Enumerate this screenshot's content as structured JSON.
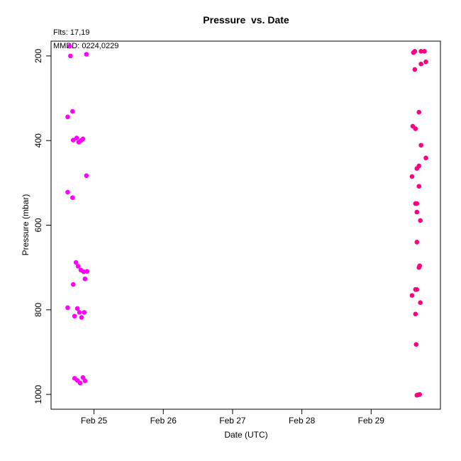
{
  "chart_data": {
    "type": "scatter",
    "title": "Pressure  vs. Date",
    "xlabel": "Date (UTC)",
    "ylabel": "Pressure (mbar)",
    "annotations": [
      "Flts: 17,19",
      "MMDD: 0224,0229"
    ],
    "x_unit": "date (Feb, UTC)",
    "xlim": [
      24.38,
      30.0
    ],
    "ylim": [
      1035,
      165
    ],
    "y_reversed": true,
    "x_ticks": [
      {
        "value": 25,
        "label": "Feb 25"
      },
      {
        "value": 26,
        "label": "Feb 26"
      },
      {
        "value": 27,
        "label": "Feb 27"
      },
      {
        "value": 28,
        "label": "Feb 28"
      },
      {
        "value": 29,
        "label": "Feb 29"
      }
    ],
    "y_ticks": [
      200,
      400,
      600,
      800,
      1000
    ],
    "grid": false,
    "legend": "none",
    "series": [
      {
        "color": "#ff00ff",
        "points": [
          [
            24.65,
            177
          ],
          [
            24.66,
            200
          ],
          [
            24.89,
            196
          ],
          [
            24.62,
            344
          ],
          [
            24.69,
            331
          ],
          [
            24.7,
            399
          ],
          [
            24.75,
            394
          ],
          [
            24.78,
            404
          ],
          [
            24.81,
            400
          ],
          [
            24.84,
            396
          ],
          [
            24.89,
            483
          ],
          [
            24.62,
            522
          ],
          [
            24.69,
            535
          ],
          [
            24.74,
            688
          ],
          [
            24.77,
            697
          ],
          [
            24.81,
            706
          ],
          [
            24.85,
            710
          ],
          [
            24.9,
            709
          ],
          [
            24.87,
            727
          ],
          [
            24.7,
            740
          ],
          [
            24.62,
            795
          ],
          [
            24.76,
            797
          ],
          [
            24.79,
            806
          ],
          [
            24.86,
            806
          ],
          [
            24.72,
            815
          ],
          [
            24.82,
            818
          ],
          [
            24.72,
            962
          ],
          [
            24.76,
            967
          ],
          [
            24.8,
            973
          ],
          [
            24.84,
            960
          ],
          [
            24.87,
            968
          ]
        ]
      },
      {
        "color": "#ff0080",
        "points": [
          [
            29.61,
            192
          ],
          [
            29.63,
            189
          ],
          [
            29.72,
            189
          ],
          [
            29.77,
            189
          ],
          [
            29.79,
            214
          ],
          [
            29.72,
            219
          ],
          [
            29.63,
            232
          ],
          [
            29.69,
            333
          ],
          [
            29.6,
            366
          ],
          [
            29.64,
            372
          ],
          [
            29.72,
            411
          ],
          [
            29.79,
            441
          ],
          [
            29.69,
            460
          ],
          [
            29.66,
            466
          ],
          [
            29.59,
            485
          ],
          [
            29.69,
            508
          ],
          [
            29.64,
            549
          ],
          [
            29.66,
            549
          ],
          [
            29.66,
            569
          ],
          [
            29.71,
            589
          ],
          [
            29.66,
            640
          ],
          [
            29.7,
            696
          ],
          [
            29.69,
            700
          ],
          [
            29.66,
            752
          ],
          [
            29.64,
            752
          ],
          [
            29.59,
            766
          ],
          [
            29.71,
            783
          ],
          [
            29.64,
            810
          ],
          [
            29.65,
            882
          ],
          [
            29.66,
            1002
          ],
          [
            29.7,
            1000
          ],
          [
            29.68,
            1001
          ]
        ]
      }
    ]
  }
}
